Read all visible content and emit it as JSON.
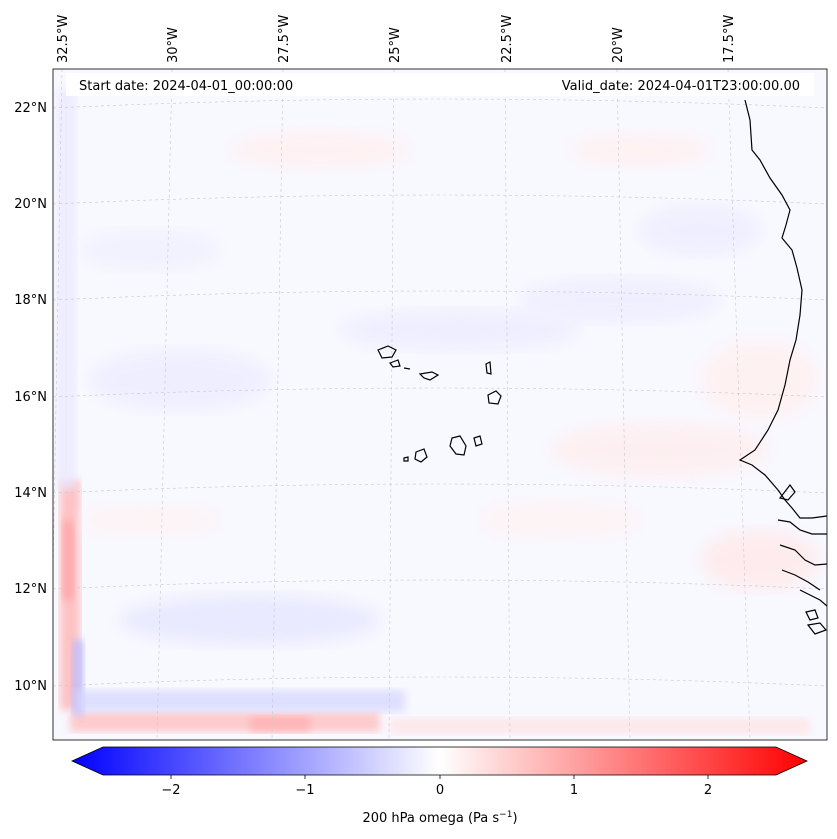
{
  "header": {
    "start_date": "Start date: 2024-04-01_00:00:00",
    "valid_date": "Valid_date: 2024-04-01T23:00:00.00"
  },
  "axes": {
    "lon_labels": [
      "32.5°W",
      "30°W",
      "27.5°W",
      "25°W",
      "22.5°W",
      "20°W",
      "17.5°W"
    ],
    "lat_labels": [
      "22°N",
      "20°N",
      "18°N",
      "16°N",
      "14°N",
      "12°N",
      "10°N"
    ]
  },
  "colorbar": {
    "ticks": [
      "−2",
      "−1",
      "0",
      "1",
      "2"
    ],
    "label_main": "200 hPa omega (Pa s",
    "label_sup": "−1",
    "label_close": ")",
    "colors": {
      "negative": "#0000ff",
      "zero": "#ffffff",
      "positive": "#ff0000"
    }
  }
}
